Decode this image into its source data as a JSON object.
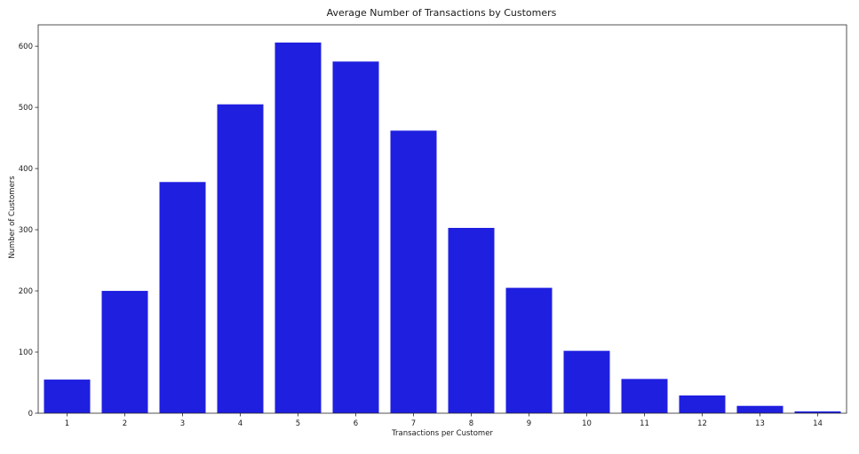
{
  "chart_data": {
    "type": "bar",
    "title": "Average Number of Transactions by Customers",
    "xlabel": "Transactions per Customer",
    "ylabel": "Number of Customers",
    "categories": [
      "1",
      "2",
      "3",
      "4",
      "5",
      "6",
      "7",
      "8",
      "9",
      "10",
      "11",
      "12",
      "13",
      "14"
    ],
    "values": [
      55,
      200,
      378,
      505,
      606,
      575,
      462,
      303,
      205,
      102,
      56,
      29,
      12,
      3
    ],
    "ylim": [
      0,
      635
    ],
    "yticks": [
      0,
      100,
      200,
      300,
      400,
      500,
      600
    ],
    "ytick_labels": [
      "0",
      "100",
      "200",
      "300",
      "400",
      "500",
      "600"
    ],
    "bar_color": "#1f1fe0",
    "grid": false,
    "legend": "none"
  }
}
